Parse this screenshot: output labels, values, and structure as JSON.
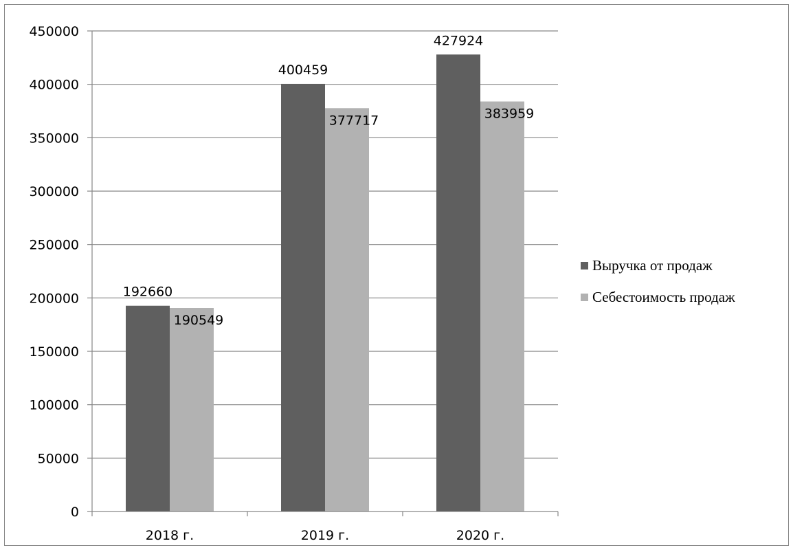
{
  "chart_data": {
    "type": "bar",
    "categories": [
      "2018 г.",
      "2019 г.",
      "2020 г."
    ],
    "series": [
      {
        "name": "Выручка от продаж",
        "values": [
          192660,
          400459,
          427924
        ],
        "color": "#5f5f5f"
      },
      {
        "name": "Себестоимость продаж",
        "values": [
          190549,
          377717,
          383959
        ],
        "color": "#b2b2b2"
      }
    ],
    "title": "",
    "xlabel": "",
    "ylabel": "",
    "ylim": [
      0,
      450000
    ],
    "ytick_step": 50000,
    "yticks": [
      "0",
      "50000",
      "100000",
      "150000",
      "200000",
      "250000",
      "300000",
      "350000",
      "400000",
      "450000"
    ],
    "grid": true,
    "legend_position": "right",
    "data_labels": true
  }
}
